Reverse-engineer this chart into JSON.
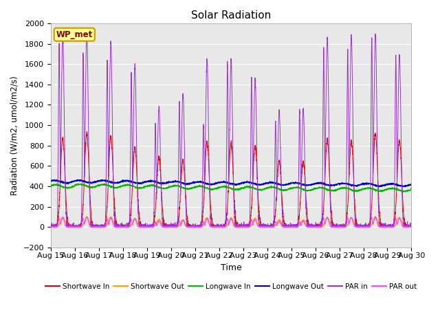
{
  "title": "Solar Radiation",
  "xlabel": "Time",
  "ylabel": "Radiation (W/m2, umol/m2/s)",
  "ylim": [
    -200,
    2000
  ],
  "yticks": [
    -200,
    0,
    200,
    400,
    600,
    800,
    1000,
    1200,
    1400,
    1600,
    1800,
    2000
  ],
  "start_day": 15,
  "n_days": 15,
  "points_per_day": 288,
  "colors": {
    "shortwave_in": "#dd0000",
    "shortwave_out": "#ff9900",
    "longwave_in": "#00bb00",
    "longwave_out": "#0000cc",
    "par_in": "#9933cc",
    "par_out": "#ff44ff"
  },
  "legend_labels": [
    "Shortwave In",
    "Shortwave Out",
    "Longwave In",
    "Longwave Out",
    "PAR in",
    "PAR out"
  ],
  "wp_met_label": "WP_met",
  "background_color": "#e8e8e8",
  "grid_color": "#ffffff",
  "annotation_box_color": "#ffff99",
  "annotation_text_color": "#880000",
  "sw_amplitudes": [
    870,
    920,
    890,
    780,
    680,
    650,
    830,
    820,
    790,
    650,
    640,
    850,
    840,
    920,
    850
  ],
  "par_amplitudes": [
    1860,
    1910,
    1810,
    1600,
    1175,
    1300,
    1640,
    1630,
    1460,
    1145,
    1145,
    1860,
    1880,
    1900,
    1695
  ],
  "par_secondary": [
    1780,
    1720,
    1620,
    1520,
    1010,
    1240,
    990,
    1630,
    1480,
    1030,
    1150,
    1740,
    1750,
    1880,
    1680
  ],
  "lw_in_base": 410,
  "lw_out_base": 450,
  "lw_in_trend": [
    -10,
    -5,
    -8,
    -12,
    -15,
    -20,
    -25,
    -28,
    -30,
    -33,
    -36,
    -38,
    -40,
    -42,
    -45
  ],
  "lw_out_trend": [
    -5,
    -3,
    -5,
    -8,
    -10,
    -15,
    -18,
    -20,
    -22,
    -25,
    -28,
    -30,
    -32,
    -35,
    -38
  ]
}
